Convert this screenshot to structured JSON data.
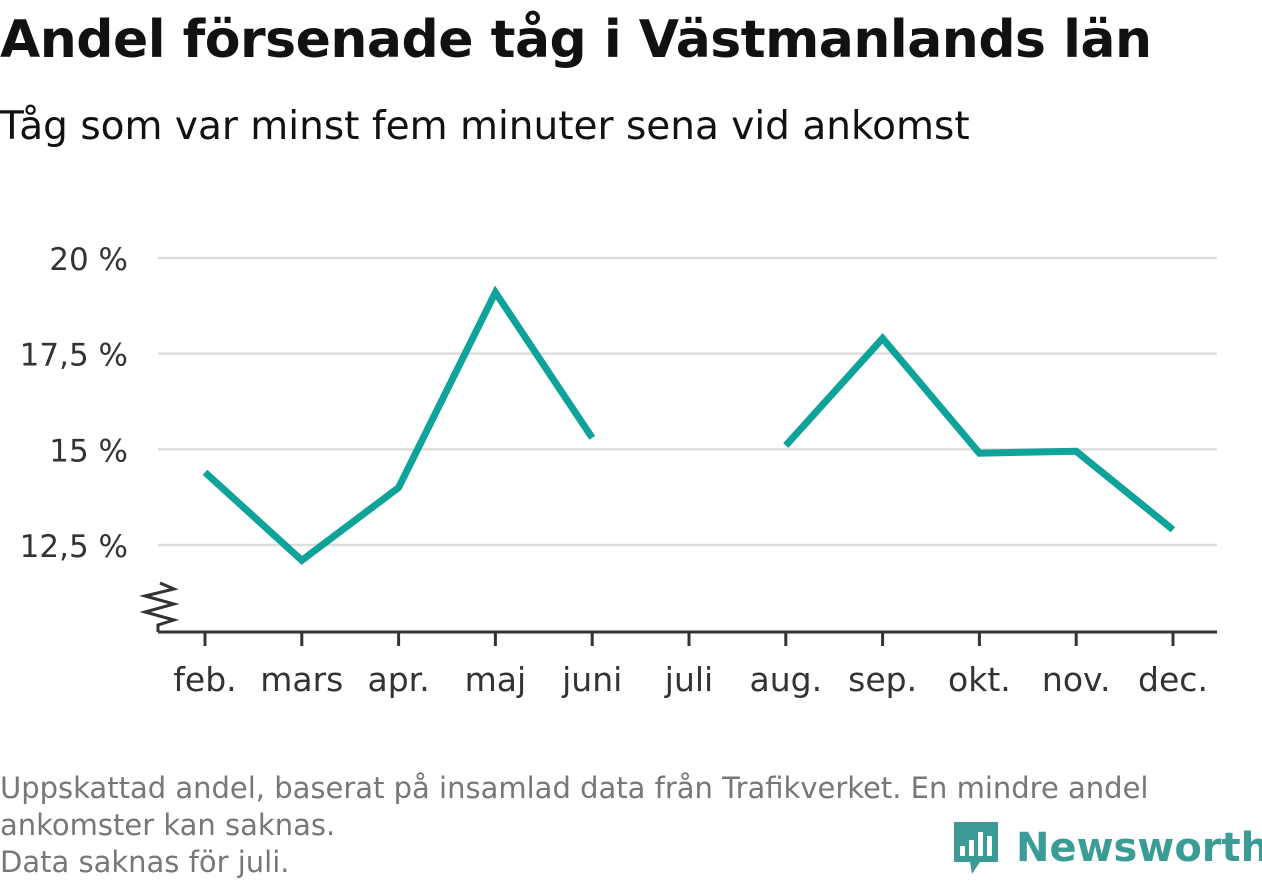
{
  "header": {
    "title": "Andel försenade tåg i Västmanlands län",
    "subtitle": "Tåg som var minst fem minuter sena vid ankomst"
  },
  "footnote": {
    "line1": "Uppskattad andel, baserat på insamlad data från Trafikverket. En mindre andel",
    "line2": "ankomster kan saknas.",
    "line3": "Data saknas för juli."
  },
  "brand": {
    "name": "Newsworthy",
    "logo_icon": "newsworthy-bar-chart-bubble-icon",
    "color": "#3b9c95"
  },
  "chart_data": {
    "type": "line",
    "title": "Andel försenade tåg i Västmanlands län",
    "subtitle": "Tåg som var minst fem minuter sena vid ankomst",
    "categories": [
      "feb.",
      "mars",
      "apr.",
      "maj",
      "juni",
      "juli",
      "aug.",
      "sep.",
      "okt.",
      "nov.",
      "dec."
    ],
    "series": [
      {
        "values": [
          14.4,
          12.1,
          14.0,
          19.1,
          15.3,
          null,
          15.1,
          17.9,
          14.9,
          14.95,
          12.9
        ],
        "color": "#0da39a"
      }
    ],
    "yticks": [
      12.5,
      15,
      17.5,
      20
    ],
    "ytick_labels": [
      "12,5 %",
      "15 %",
      "17,5 %",
      "20 %"
    ],
    "ylim": [
      10.25,
      20
    ],
    "axis_break": true,
    "grid": true,
    "legend": "none",
    "gridline_color": "#dddddd",
    "axis_color": "#333333"
  }
}
